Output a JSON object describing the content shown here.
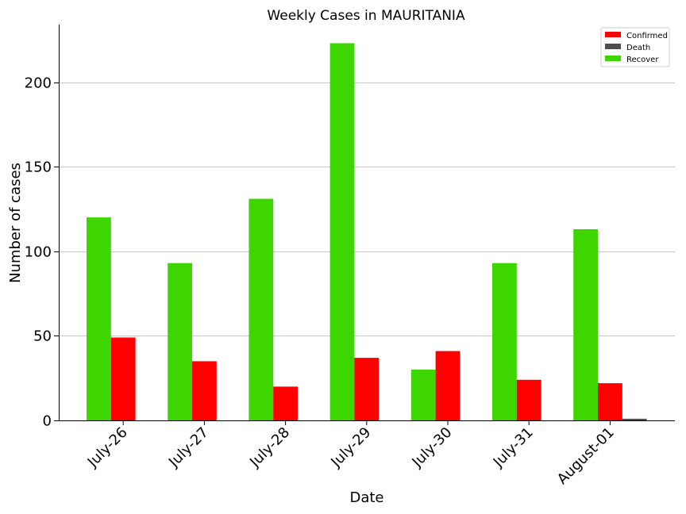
{
  "chart_data": {
    "type": "bar",
    "title": "Weekly Cases in MAURITANIA",
    "xlabel": "Date",
    "ylabel": "Number of cases",
    "categories": [
      "July-26",
      "July-27",
      "July-28",
      "July-29",
      "July-30",
      "July-31",
      "August-01"
    ],
    "series": [
      {
        "name": "Recover",
        "color": "#3dd600",
        "values": [
          120,
          93,
          131,
          223,
          30,
          93,
          113
        ]
      },
      {
        "name": "Confirmed",
        "color": "#ff0000",
        "values": [
          49,
          35,
          20,
          37,
          41,
          24,
          22
        ]
      },
      {
        "name": "Death",
        "color": "#4d4d4d",
        "values": [
          0,
          0,
          0,
          0,
          0,
          0,
          1
        ]
      }
    ],
    "legend_order": [
      "Confirmed",
      "Death",
      "Recover"
    ],
    "ylim": [
      0,
      234
    ],
    "yticks": [
      0,
      50,
      100,
      150,
      200
    ],
    "grid": "y",
    "legend_position": "top-right"
  }
}
